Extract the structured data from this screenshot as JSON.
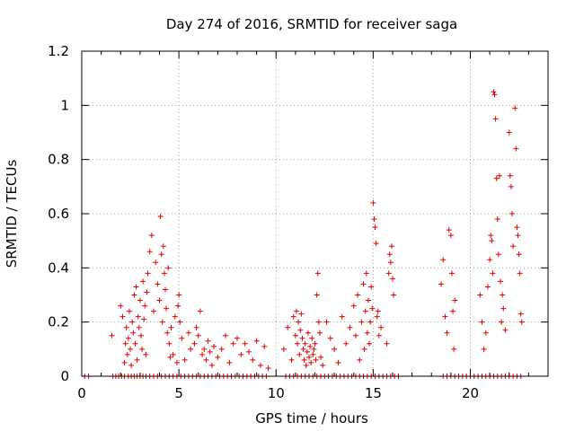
{
  "chart_data": {
    "type": "scatter",
    "title": "Day 274 of 2016, SRMTID for receiver saga",
    "xlabel": "GPS time / hours",
    "ylabel": "SRMTID / TECUs",
    "xlim": [
      0,
      24
    ],
    "ylim": [
      0,
      1.2
    ],
    "x_ticks": [
      0,
      5,
      10,
      15,
      20
    ],
    "y_ticks": [
      0,
      0.2,
      0.4,
      0.6,
      0.8,
      1,
      1.2
    ],
    "x_tick_labels": [
      "0",
      "5",
      "10",
      "15",
      "20"
    ],
    "y_tick_labels": [
      "0",
      "0.2",
      "0.4",
      "0.6",
      "0.8",
      "1",
      "1.2"
    ],
    "grid": true,
    "marker": "+",
    "color": "#e00000",
    "series": [
      {
        "name": "SRMTID",
        "points": [
          [
            0.15,
            0
          ],
          [
            0.35,
            0
          ],
          [
            1.6,
            0
          ],
          [
            1.75,
            0
          ],
          [
            1.9,
            0
          ],
          [
            2.05,
            0
          ],
          [
            2.2,
            0
          ],
          [
            2.4,
            0
          ],
          [
            2.55,
            0
          ],
          [
            2.7,
            0
          ],
          [
            2.85,
            0
          ],
          [
            3.0,
            0
          ],
          [
            3.15,
            0
          ],
          [
            3.3,
            0
          ],
          [
            3.5,
            0
          ],
          [
            3.7,
            0
          ],
          [
            3.9,
            0
          ],
          [
            4.1,
            0
          ],
          [
            4.3,
            0
          ],
          [
            4.5,
            0
          ],
          [
            4.7,
            0
          ],
          [
            4.9,
            0
          ],
          [
            5.1,
            0
          ],
          [
            5.3,
            0
          ],
          [
            5.5,
            0
          ],
          [
            5.7,
            0
          ],
          [
            5.9,
            0
          ],
          [
            6.1,
            0
          ],
          [
            6.3,
            0
          ],
          [
            6.5,
            0
          ],
          [
            6.7,
            0
          ],
          [
            6.9,
            0
          ],
          [
            7.1,
            0
          ],
          [
            7.3,
            0
          ],
          [
            7.5,
            0
          ],
          [
            7.7,
            0
          ],
          [
            7.9,
            0
          ],
          [
            8.1,
            0
          ],
          [
            8.3,
            0
          ],
          [
            8.5,
            0
          ],
          [
            8.7,
            0
          ],
          [
            8.9,
            0
          ],
          [
            9.1,
            0
          ],
          [
            9.3,
            0
          ],
          [
            9.5,
            0
          ],
          [
            10.5,
            0
          ],
          [
            10.7,
            0
          ],
          [
            10.9,
            0
          ],
          [
            11.1,
            0
          ],
          [
            11.3,
            0
          ],
          [
            11.5,
            0
          ],
          [
            11.7,
            0
          ],
          [
            11.9,
            0
          ],
          [
            12.1,
            0
          ],
          [
            12.3,
            0
          ],
          [
            12.5,
            0
          ],
          [
            12.7,
            0
          ],
          [
            12.9,
            0
          ],
          [
            13.1,
            0
          ],
          [
            13.3,
            0
          ],
          [
            13.5,
            0
          ],
          [
            13.7,
            0
          ],
          [
            13.9,
            0
          ],
          [
            14.1,
            0
          ],
          [
            14.3,
            0
          ],
          [
            14.5,
            0
          ],
          [
            14.7,
            0
          ],
          [
            14.9,
            0
          ],
          [
            15.1,
            0
          ],
          [
            15.3,
            0
          ],
          [
            15.5,
            0
          ],
          [
            15.7,
            0
          ],
          [
            15.9,
            0
          ],
          [
            16.1,
            0
          ],
          [
            16.3,
            0
          ],
          [
            18.6,
            0
          ],
          [
            18.8,
            0
          ],
          [
            19.0,
            0
          ],
          [
            19.2,
            0
          ],
          [
            19.4,
            0
          ],
          [
            19.6,
            0
          ],
          [
            19.8,
            0
          ],
          [
            20.0,
            0
          ],
          [
            20.2,
            0
          ],
          [
            20.4,
            0
          ],
          [
            20.6,
            0
          ],
          [
            20.8,
            0
          ],
          [
            21.0,
            0
          ],
          [
            21.2,
            0
          ],
          [
            21.4,
            0
          ],
          [
            21.6,
            0
          ],
          [
            21.8,
            0
          ],
          [
            22.0,
            0
          ],
          [
            22.2,
            0
          ],
          [
            22.4,
            0
          ],
          [
            22.6,
            0
          ],
          [
            1.55,
            0.15
          ],
          [
            2.0,
            0.26
          ],
          [
            2.1,
            0.22
          ],
          [
            2.2,
            0.05
          ],
          [
            2.25,
            0.12
          ],
          [
            2.3,
            0.18
          ],
          [
            2.35,
            0.08
          ],
          [
            2.4,
            0.14
          ],
          [
            2.45,
            0.24
          ],
          [
            2.5,
            0.1
          ],
          [
            2.55,
            0.04
          ],
          [
            2.6,
            0.2
          ],
          [
            2.65,
            0.16
          ],
          [
            2.7,
            0.3
          ],
          [
            2.75,
            0.12
          ],
          [
            2.8,
            0.33
          ],
          [
            2.85,
            0.06
          ],
          [
            2.9,
            0.22
          ],
          [
            2.95,
            0.18
          ],
          [
            3.0,
            0.28
          ],
          [
            3.05,
            0.15
          ],
          [
            3.1,
            0.1
          ],
          [
            3.15,
            0.35
          ],
          [
            3.2,
            0.21
          ],
          [
            3.25,
            0.26
          ],
          [
            3.3,
            0.08
          ],
          [
            3.35,
            0.31
          ],
          [
            3.4,
            0.38
          ],
          [
            3.5,
            0.46
          ],
          [
            3.6,
            0.52
          ],
          [
            3.7,
            0.24
          ],
          [
            3.8,
            0.42
          ],
          [
            3.9,
            0.34
          ],
          [
            4.0,
            0.28
          ],
          [
            4.05,
            0.59
          ],
          [
            4.1,
            0.45
          ],
          [
            4.15,
            0.2
          ],
          [
            4.2,
            0.48
          ],
          [
            4.25,
            0.38
          ],
          [
            4.3,
            0.32
          ],
          [
            4.35,
            0.25
          ],
          [
            4.4,
            0.16
          ],
          [
            4.45,
            0.4
          ],
          [
            4.5,
            0.12
          ],
          [
            4.55,
            0.07
          ],
          [
            4.6,
            0.18
          ],
          [
            4.7,
            0.08
          ],
          [
            4.8,
            0.22
          ],
          [
            4.9,
            0.05
          ],
          [
            4.95,
            0.26
          ],
          [
            5.0,
            0.3
          ],
          [
            5.05,
            0.2
          ],
          [
            5.15,
            0.14
          ],
          [
            5.3,
            0.06
          ],
          [
            5.5,
            0.16
          ],
          [
            5.6,
            0.1
          ],
          [
            5.8,
            0.12
          ],
          [
            5.9,
            0.18
          ],
          [
            6.0,
            0.15
          ],
          [
            6.1,
            0.24
          ],
          [
            6.2,
            0.08
          ],
          [
            6.3,
            0.1
          ],
          [
            6.4,
            0.06
          ],
          [
            6.5,
            0.13
          ],
          [
            6.6,
            0.09
          ],
          [
            6.7,
            0.04
          ],
          [
            6.8,
            0.11
          ],
          [
            7.0,
            0.07
          ],
          [
            7.2,
            0.1
          ],
          [
            7.4,
            0.15
          ],
          [
            7.6,
            0.05
          ],
          [
            7.8,
            0.12
          ],
          [
            8.0,
            0.14
          ],
          [
            8.2,
            0.08
          ],
          [
            8.4,
            0.12
          ],
          [
            8.6,
            0.09
          ],
          [
            8.8,
            0.06
          ],
          [
            9.0,
            0.13
          ],
          [
            9.2,
            0.04
          ],
          [
            9.4,
            0.11
          ],
          [
            9.6,
            0.03
          ],
          [
            10.4,
            0.1
          ],
          [
            10.6,
            0.18
          ],
          [
            10.8,
            0.06
          ],
          [
            10.9,
            0.22
          ],
          [
            11.0,
            0.15
          ],
          [
            11.05,
            0.24
          ],
          [
            11.1,
            0.12
          ],
          [
            11.15,
            0.2
          ],
          [
            11.2,
            0.08
          ],
          [
            11.25,
            0.17
          ],
          [
            11.3,
            0.23
          ],
          [
            11.35,
            0.14
          ],
          [
            11.4,
            0.1
          ],
          [
            11.45,
            0.06
          ],
          [
            11.5,
            0.12
          ],
          [
            11.55,
            0.04
          ],
          [
            11.6,
            0.09
          ],
          [
            11.65,
            0.16
          ],
          [
            11.7,
            0.07
          ],
          [
            11.75,
            0.11
          ],
          [
            11.8,
            0.05
          ],
          [
            11.85,
            0.14
          ],
          [
            11.9,
            0.08
          ],
          [
            11.95,
            0.1
          ],
          [
            12.0,
            0.12
          ],
          [
            12.05,
            0.06
          ],
          [
            12.1,
            0.3
          ],
          [
            12.15,
            0.38
          ],
          [
            12.2,
            0.2
          ],
          [
            12.25,
            0.16
          ],
          [
            12.3,
            0.07
          ],
          [
            12.4,
            0.04
          ],
          [
            12.6,
            0.2
          ],
          [
            12.8,
            0.14
          ],
          [
            13.0,
            0.1
          ],
          [
            13.2,
            0.05
          ],
          [
            13.4,
            0.22
          ],
          [
            13.6,
            0.12
          ],
          [
            13.8,
            0.18
          ],
          [
            14.0,
            0.26
          ],
          [
            14.1,
            0.15
          ],
          [
            14.2,
            0.3
          ],
          [
            14.3,
            0.06
          ],
          [
            14.4,
            0.2
          ],
          [
            14.5,
            0.34
          ],
          [
            14.55,
            0.1
          ],
          [
            14.6,
            0.24
          ],
          [
            14.65,
            0.38
          ],
          [
            14.7,
            0.16
          ],
          [
            14.75,
            0.28
          ],
          [
            14.8,
            0.12
          ],
          [
            14.85,
            0.2
          ],
          [
            14.9,
            0.33
          ],
          [
            14.95,
            0.25
          ],
          [
            15.0,
            0.64
          ],
          [
            15.05,
            0.58
          ],
          [
            15.1,
            0.55
          ],
          [
            15.15,
            0.49
          ],
          [
            15.2,
            0.22
          ],
          [
            15.25,
            0.24
          ],
          [
            15.3,
            0.15
          ],
          [
            15.4,
            0.18
          ],
          [
            15.8,
            0.38
          ],
          [
            15.85,
            0.45
          ],
          [
            15.9,
            0.42
          ],
          [
            15.95,
            0.48
          ],
          [
            16.0,
            0.36
          ],
          [
            16.05,
            0.3
          ],
          [
            15.7,
            0.12
          ],
          [
            18.5,
            0.34
          ],
          [
            18.6,
            0.43
          ],
          [
            18.7,
            0.22
          ],
          [
            18.8,
            0.16
          ],
          [
            18.9,
            0.54
          ],
          [
            19.0,
            0.52
          ],
          [
            19.05,
            0.38
          ],
          [
            19.1,
            0.24
          ],
          [
            19.15,
            0.1
          ],
          [
            19.2,
            0.28
          ],
          [
            20.5,
            0.3
          ],
          [
            20.6,
            0.2
          ],
          [
            20.7,
            0.1
          ],
          [
            20.8,
            0.16
          ],
          [
            20.9,
            0.33
          ],
          [
            21.0,
            0.43
          ],
          [
            21.05,
            0.52
          ],
          [
            21.1,
            0.5
          ],
          [
            21.15,
            0.38
          ],
          [
            21.2,
            1.05
          ],
          [
            21.25,
            1.04
          ],
          [
            21.3,
            0.95
          ],
          [
            21.35,
            0.73
          ],
          [
            21.4,
            0.58
          ],
          [
            21.45,
            0.45
          ],
          [
            21.5,
            0.74
          ],
          [
            21.55,
            0.35
          ],
          [
            21.6,
            0.2
          ],
          [
            21.65,
            0.3
          ],
          [
            21.7,
            0.25
          ],
          [
            21.8,
            0.17
          ],
          [
            22.0,
            0.9
          ],
          [
            22.05,
            0.74
          ],
          [
            22.1,
            0.7
          ],
          [
            22.15,
            0.6
          ],
          [
            22.2,
            0.48
          ],
          [
            22.3,
            0.99
          ],
          [
            22.35,
            0.84
          ],
          [
            22.4,
            0.55
          ],
          [
            22.45,
            0.52
          ],
          [
            22.5,
            0.45
          ],
          [
            22.55,
            0.38
          ],
          [
            22.6,
            0.23
          ],
          [
            22.65,
            0.2
          ]
        ]
      }
    ]
  }
}
